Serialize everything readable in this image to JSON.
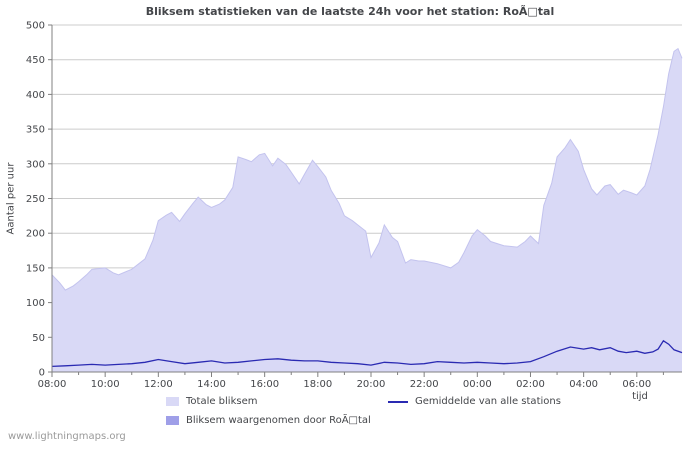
{
  "footer": {
    "text": "www.lightningmaps.org"
  },
  "chart_data": {
    "type": "area+line",
    "title": "Bliksem statistieken van de laatste 24h voor het station: RoÃ□tal",
    "xlabel": "tijd",
    "ylabel": "Aantal per uur",
    "ylim": [
      0,
      500
    ],
    "ytick_step": 50,
    "x_span": 23.7,
    "x_tick_labels": [
      "08:00",
      "10:00",
      "12:00",
      "14:00",
      "16:00",
      "18:00",
      "20:00",
      "22:00",
      "00:00",
      "02:00",
      "04:00",
      "06:00"
    ],
    "grid": "horizontal",
    "legend_position": "bottom",
    "colors": {
      "grid": "#cccccc",
      "axis": "#808080",
      "text": "#44464a",
      "background": "#ffffff"
    },
    "series": [
      {
        "id": "total",
        "name": "Totale bliksem",
        "type": "area",
        "color": "#d9d9f6",
        "edge": "#c3c3ee",
        "points": [
          [
            0,
            140
          ],
          [
            0.3,
            128
          ],
          [
            0.5,
            118
          ],
          [
            0.8,
            124
          ],
          [
            1,
            130
          ],
          [
            1.3,
            140
          ],
          [
            1.5,
            148
          ],
          [
            2,
            150
          ],
          [
            2.3,
            143
          ],
          [
            2.5,
            140
          ],
          [
            3,
            148
          ],
          [
            3.5,
            163
          ],
          [
            3.8,
            190
          ],
          [
            4,
            218
          ],
          [
            4.3,
            226
          ],
          [
            4.5,
            230
          ],
          [
            4.8,
            217
          ],
          [
            5,
            228
          ],
          [
            5.3,
            243
          ],
          [
            5.5,
            252
          ],
          [
            5.8,
            241
          ],
          [
            6,
            237
          ],
          [
            6.3,
            242
          ],
          [
            6.5,
            248
          ],
          [
            6.8,
            266
          ],
          [
            7,
            310
          ],
          [
            7.3,
            306
          ],
          [
            7.5,
            303
          ],
          [
            7.8,
            313
          ],
          [
            8,
            315
          ],
          [
            8.3,
            297
          ],
          [
            8.5,
            308
          ],
          [
            8.8,
            299
          ],
          [
            9,
            288
          ],
          [
            9.3,
            271
          ],
          [
            9.5,
            285
          ],
          [
            9.8,
            305
          ],
          [
            10,
            296
          ],
          [
            10.3,
            281
          ],
          [
            10.5,
            262
          ],
          [
            10.8,
            243
          ],
          [
            11,
            225
          ],
          [
            11.3,
            218
          ],
          [
            11.5,
            212
          ],
          [
            11.8,
            203
          ],
          [
            12,
            165
          ],
          [
            12.3,
            186
          ],
          [
            12.5,
            212
          ],
          [
            12.8,
            194
          ],
          [
            13,
            188
          ],
          [
            13.3,
            157
          ],
          [
            13.5,
            162
          ],
          [
            13.8,
            160
          ],
          [
            14,
            160
          ],
          [
            14.5,
            156
          ],
          [
            15,
            150
          ],
          [
            15.3,
            158
          ],
          [
            15.5,
            172
          ],
          [
            15.8,
            196
          ],
          [
            16,
            205
          ],
          [
            16.3,
            196
          ],
          [
            16.5,
            188
          ],
          [
            17,
            182
          ],
          [
            17.5,
            180
          ],
          [
            17.8,
            188
          ],
          [
            18,
            196
          ],
          [
            18.3,
            185
          ],
          [
            18.5,
            240
          ],
          [
            18.8,
            272
          ],
          [
            19,
            310
          ],
          [
            19.3,
            323
          ],
          [
            19.5,
            335
          ],
          [
            19.8,
            318
          ],
          [
            20,
            292
          ],
          [
            20.3,
            264
          ],
          [
            20.5,
            255
          ],
          [
            20.8,
            268
          ],
          [
            21,
            270
          ],
          [
            21.3,
            256
          ],
          [
            21.5,
            262
          ],
          [
            21.8,
            258
          ],
          [
            22,
            255
          ],
          [
            22.3,
            268
          ],
          [
            22.5,
            292
          ],
          [
            22.8,
            342
          ],
          [
            23,
            382
          ],
          [
            23.2,
            430
          ],
          [
            23.4,
            462
          ],
          [
            23.55,
            466
          ],
          [
            23.7,
            452
          ]
        ]
      },
      {
        "id": "station",
        "name": "Bliksem waargenomen door RoÃ□tal",
        "type": "area",
        "color": "#9f9fe8",
        "edge": "#9f9fe8",
        "points": [
          [
            0,
            0
          ],
          [
            23.7,
            0
          ]
        ]
      },
      {
        "id": "average",
        "name": "Gemiddelde van alle stations",
        "type": "line",
        "color": "#2a2ab2",
        "points": [
          [
            0,
            8
          ],
          [
            0.5,
            9
          ],
          [
            1,
            10
          ],
          [
            1.5,
            11
          ],
          [
            2,
            10
          ],
          [
            2.5,
            11
          ],
          [
            3,
            12
          ],
          [
            3.5,
            14
          ],
          [
            4,
            18
          ],
          [
            4.5,
            15
          ],
          [
            5,
            12
          ],
          [
            5.5,
            14
          ],
          [
            6,
            16
          ],
          [
            6.5,
            13
          ],
          [
            7,
            14
          ],
          [
            7.5,
            16
          ],
          [
            8,
            18
          ],
          [
            8.5,
            19
          ],
          [
            9,
            17
          ],
          [
            9.5,
            16
          ],
          [
            10,
            16
          ],
          [
            10.5,
            14
          ],
          [
            11,
            13
          ],
          [
            11.5,
            12
          ],
          [
            12,
            10
          ],
          [
            12.5,
            14
          ],
          [
            13,
            13
          ],
          [
            13.5,
            11
          ],
          [
            14,
            12
          ],
          [
            14.5,
            15
          ],
          [
            15,
            14
          ],
          [
            15.5,
            13
          ],
          [
            16,
            14
          ],
          [
            16.5,
            13
          ],
          [
            17,
            12
          ],
          [
            17.5,
            13
          ],
          [
            18,
            15
          ],
          [
            18.5,
            22
          ],
          [
            19,
            30
          ],
          [
            19.5,
            36
          ],
          [
            20,
            33
          ],
          [
            20.3,
            35
          ],
          [
            20.6,
            32
          ],
          [
            21,
            35
          ],
          [
            21.3,
            30
          ],
          [
            21.6,
            28
          ],
          [
            22,
            30
          ],
          [
            22.3,
            27
          ],
          [
            22.6,
            29
          ],
          [
            22.8,
            33
          ],
          [
            23,
            45
          ],
          [
            23.2,
            40
          ],
          [
            23.4,
            32
          ],
          [
            23.7,
            28
          ]
        ]
      }
    ]
  }
}
